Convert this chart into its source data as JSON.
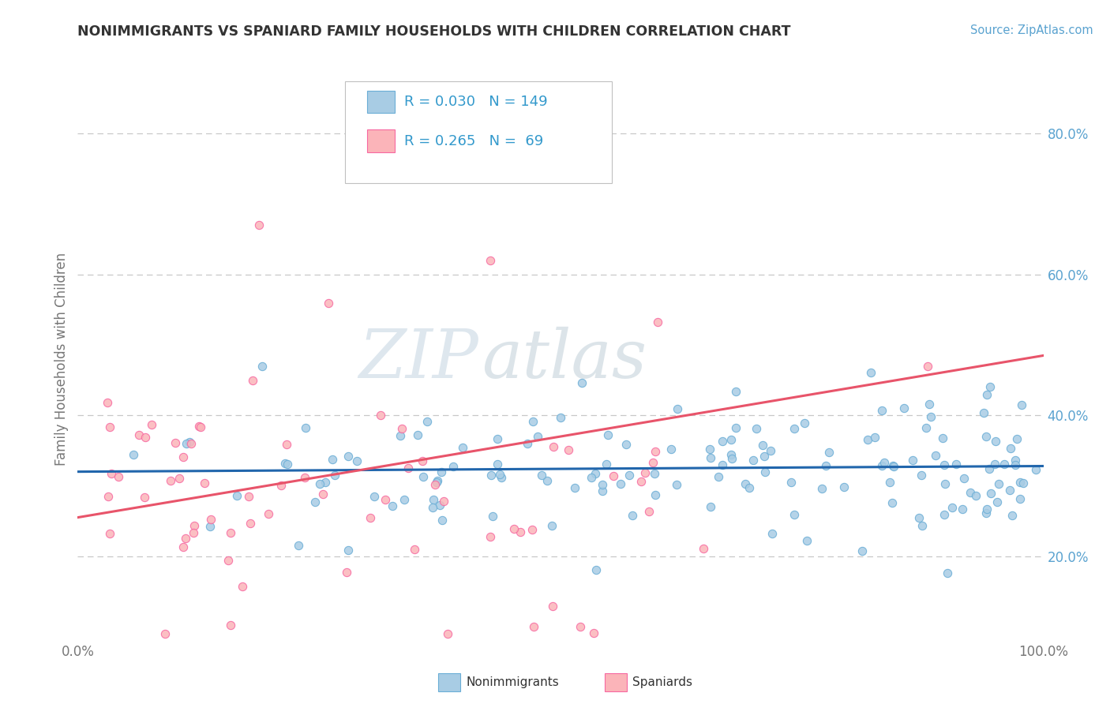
{
  "title": "NONIMMIGRANTS VS SPANIARD FAMILY HOUSEHOLDS WITH CHILDREN CORRELATION CHART",
  "source": "Source: ZipAtlas.com",
  "ylabel": "Family Households with Children",
  "xlim": [
    0.0,
    1.0
  ],
  "ylim": [
    0.08,
    0.88
  ],
  "yticks_right": [
    0.2,
    0.4,
    0.6,
    0.8
  ],
  "ytick_right_labels": [
    "20.0%",
    "40.0%",
    "60.0%",
    "80.0%"
  ],
  "blue_color": "#a8cce4",
  "blue_edge_color": "#6baed6",
  "pink_color": "#fbb4b9",
  "pink_edge_color": "#f768a1",
  "blue_line_color": "#2166ac",
  "pink_line_color": "#e8546a",
  "legend_r_blue": "0.030",
  "legend_n_blue": "149",
  "legend_r_pink": "0.265",
  "legend_n_pink": " 69",
  "legend_label_blue": "Nonimmigrants",
  "legend_label_pink": "Spaniards",
  "watermark_zip": "ZIP",
  "watermark_atlas": "atlas",
  "background_color": "#ffffff",
  "grid_color": "#c8c8c8",
  "title_color": "#333333",
  "source_color": "#5ba3d0",
  "axis_color": "#777777",
  "legend_text_color": "#3399cc",
  "blue_trend_intercept": 0.32,
  "blue_trend_slope": 0.008,
  "pink_trend_intercept": 0.255,
  "pink_trend_slope": 0.23
}
